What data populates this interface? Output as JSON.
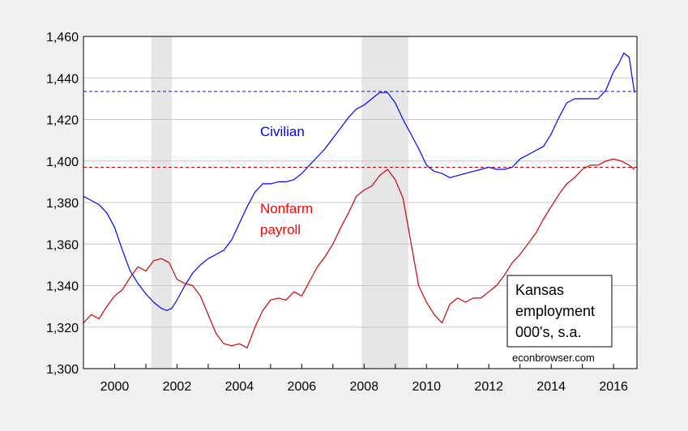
{
  "chart_data": {
    "type": "line",
    "title": "",
    "xlabel": "",
    "ylabel": "",
    "xlim": [
      1999.0,
      2016.75
    ],
    "ylim": [
      1300,
      1460
    ],
    "yticks": [
      1300,
      1320,
      1340,
      1360,
      1380,
      1400,
      1420,
      1440,
      1460
    ],
    "ytick_labels": [
      "1,300",
      "1,320",
      "1,340",
      "1,360",
      "1,380",
      "1,400",
      "1,420",
      "1,440",
      "1,460"
    ],
    "xtick_labels": [
      {
        "x": 2000,
        "label": "2000"
      },
      {
        "x": 2002,
        "label": "2002"
      },
      {
        "x": 2004,
        "label": "2004"
      },
      {
        "x": 2006,
        "label": "2006"
      },
      {
        "x": 2008,
        "label": "2008"
      },
      {
        "x": 2010,
        "label": "2010"
      },
      {
        "x": 2012,
        "label": "2012"
      },
      {
        "x": 2014,
        "label": "2014"
      },
      {
        "x": 2016,
        "label": "2016"
      }
    ],
    "grid": true,
    "recessions": [
      {
        "start": 2001.17,
        "end": 2001.83
      },
      {
        "start": 2007.92,
        "end": 2009.42
      }
    ],
    "reference_lines": [
      {
        "series": "Civilian",
        "value": 1433.5,
        "color": "#1a1aa0"
      },
      {
        "series": "Nonfarm payroll",
        "value": 1397,
        "color": "#cc0000"
      }
    ],
    "annotations": [
      {
        "text": "Civilian",
        "color": "#0000ff"
      },
      {
        "text": "Nonfarm",
        "color": "#ff0000"
      },
      {
        "text": "payroll",
        "color": "#ff0000"
      }
    ],
    "legend_box": {
      "lines": [
        "Kansas",
        "employment",
        "000's, s.a."
      ],
      "placement": "bottom-right"
    },
    "source": "econbrowser.com",
    "series": [
      {
        "name": "Civilian",
        "color": "#0000ff",
        "x": [
          1999.0,
          1999.25,
          1999.5,
          1999.75,
          2000.0,
          2000.25,
          2000.5,
          2000.75,
          2001.0,
          2001.25,
          2001.5,
          2001.67,
          2001.83,
          2002.0,
          2002.25,
          2002.5,
          2002.75,
          2003.0,
          2003.25,
          2003.5,
          2003.75,
          2004.0,
          2004.25,
          2004.5,
          2004.75,
          2005.0,
          2005.25,
          2005.5,
          2005.75,
          2006.0,
          2006.25,
          2006.5,
          2006.75,
          2007.0,
          2007.25,
          2007.5,
          2007.75,
          2008.0,
          2008.25,
          2008.5,
          2008.75,
          2009.0,
          2009.25,
          2009.5,
          2009.75,
          2010.0,
          2010.25,
          2010.5,
          2010.75,
          2011.0,
          2011.25,
          2011.5,
          2011.75,
          2012.0,
          2012.25,
          2012.5,
          2012.75,
          2013.0,
          2013.25,
          2013.5,
          2013.75,
          2014.0,
          2014.25,
          2014.5,
          2014.75,
          2015.0,
          2015.25,
          2015.5,
          2015.75,
          2016.0,
          2016.17,
          2016.33,
          2016.5,
          2016.67
        ],
        "values": [
          1383,
          1381,
          1379,
          1375,
          1368,
          1357,
          1347,
          1341,
          1336,
          1332,
          1329,
          1328,
          1329,
          1333,
          1340,
          1346,
          1350,
          1353,
          1355,
          1357,
          1362,
          1370,
          1378,
          1385,
          1389,
          1389,
          1390,
          1390,
          1391,
          1394,
          1398,
          1402,
          1406,
          1411,
          1416,
          1421,
          1425,
          1427,
          1430,
          1433,
          1433,
          1428,
          1420,
          1413,
          1406,
          1398,
          1395,
          1394,
          1392,
          1393,
          1394,
          1395,
          1396,
          1397,
          1396,
          1396,
          1397,
          1401,
          1403,
          1405,
          1407,
          1413,
          1421,
          1428,
          1430,
          1430,
          1430,
          1430,
          1434,
          1443,
          1447,
          1452,
          1450,
          1433
        ]
      },
      {
        "name": "Nonfarm payroll",
        "color": "#cc0000",
        "x": [
          1999.0,
          1999.25,
          1999.5,
          1999.75,
          2000.0,
          2000.25,
          2000.5,
          2000.75,
          2001.0,
          2001.25,
          2001.5,
          2001.75,
          2002.0,
          2002.25,
          2002.5,
          2002.75,
          2003.0,
          2003.25,
          2003.5,
          2003.75,
          2004.0,
          2004.25,
          2004.5,
          2004.75,
          2005.0,
          2005.25,
          2005.5,
          2005.75,
          2006.0,
          2006.25,
          2006.5,
          2006.75,
          2007.0,
          2007.25,
          2007.5,
          2007.75,
          2008.0,
          2008.25,
          2008.5,
          2008.75,
          2009.0,
          2009.25,
          2009.5,
          2009.75,
          2010.0,
          2010.25,
          2010.5,
          2010.75,
          2011.0,
          2011.25,
          2011.5,
          2011.75,
          2012.0,
          2012.25,
          2012.5,
          2012.75,
          2013.0,
          2013.25,
          2013.5,
          2013.75,
          2014.0,
          2014.25,
          2014.5,
          2014.75,
          2015.0,
          2015.25,
          2015.5,
          2015.75,
          2016.0,
          2016.25,
          2016.5,
          2016.67
        ],
        "values": [
          1322,
          1326,
          1324,
          1330,
          1335,
          1338,
          1344,
          1349,
          1347,
          1352,
          1353,
          1351,
          1343,
          1341,
          1340,
          1335,
          1326,
          1317,
          1312,
          1311,
          1312,
          1310,
          1320,
          1328,
          1333,
          1334,
          1333,
          1337,
          1335,
          1342,
          1349,
          1354,
          1360,
          1368,
          1375,
          1383,
          1386,
          1388,
          1393,
          1396,
          1391,
          1382,
          1361,
          1340,
          1332,
          1326,
          1322,
          1331,
          1334,
          1332,
          1334,
          1334,
          1337,
          1340,
          1345,
          1351,
          1355,
          1360,
          1365,
          1372,
          1378,
          1384,
          1389,
          1392,
          1396,
          1398,
          1398,
          1400,
          1401,
          1400,
          1398,
          1396
        ]
      }
    ]
  }
}
